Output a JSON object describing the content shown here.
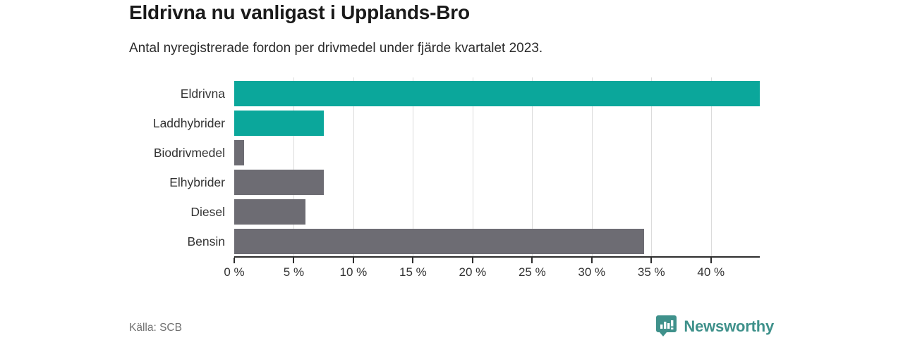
{
  "page": {
    "title": "Eldrivna nu vanligast i Upplands-Bro",
    "subtitle": "Antal nyregistrerade fordon per drivmedel under fjärde kvartalet 2023.",
    "source": "Källa: SCB",
    "brand": "Newsworthy"
  },
  "colors": {
    "highlight": "#0ba79b",
    "neutral": "#6d6c73",
    "brand_teal": "#3f918b",
    "grid": "#dbdbdb",
    "axis": "#2d2d2d",
    "title_text": "#1a1a1a",
    "body_text": "#333333",
    "muted_text": "#707070"
  },
  "chart_data": {
    "type": "bar",
    "orientation": "horizontal",
    "title": "Eldrivna nu vanligast i Upplands-Bro",
    "subtitle": "Antal nyregistrerade fordon per drivmedel under fjärde kvartalet 2023.",
    "categories": [
      "Eldrivna",
      "Laddhybrider",
      "Biodrivmedel",
      "Elhybrider",
      "Diesel",
      "Bensin"
    ],
    "values": [
      44.1,
      7.5,
      0.8,
      7.5,
      6.0,
      34.4
    ],
    "bar_colors": [
      "#0ba79b",
      "#0ba79b",
      "#6d6c73",
      "#6d6c73",
      "#6d6c73",
      "#6d6c73"
    ],
    "xlim": [
      0,
      44.1
    ],
    "xticks": [
      0,
      5,
      10,
      15,
      20,
      25,
      30,
      35,
      40
    ],
    "xtick_suffix": " %",
    "unit": "%",
    "grid": "vertical",
    "legend": "none",
    "source": "Källa: SCB"
  }
}
